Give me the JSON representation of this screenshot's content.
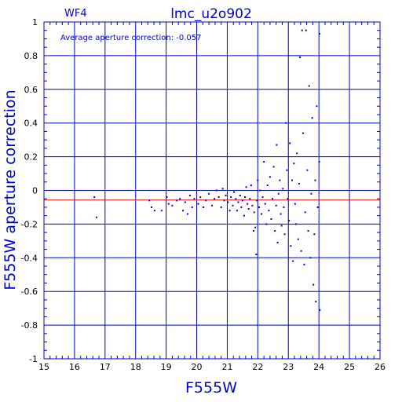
{
  "chart_data": {
    "type": "scatter",
    "title": "lmc_u2o902",
    "panel_label": "WF4",
    "annotation": "Average aperture correction: -0.057",
    "xlabel": "F555W",
    "ylabel": "F555W aperture correction",
    "xlim": [
      15,
      26
    ],
    "ylim": [
      -1,
      1
    ],
    "x_ticks": [
      15,
      16,
      17,
      18,
      19,
      20,
      21,
      22,
      23,
      24,
      25,
      26
    ],
    "y_ticks": [
      -1,
      -0.8,
      -0.6,
      -0.4,
      -0.2,
      0,
      0.2,
      0.4,
      0.6,
      0.8,
      1
    ],
    "y_tick_labels": [
      "-1",
      "-0.8",
      "-0.6",
      "-0.4",
      "-0.2",
      "0",
      "0.2",
      "0.4",
      "0.6",
      "0.8",
      "1"
    ],
    "grid": true,
    "reference_line": {
      "y": -0.057,
      "color": "#ff0000"
    },
    "colors": {
      "axes": "#0000cc",
      "points": "#0000cc",
      "reference": "#ff0000",
      "text": "#0000cc"
    },
    "series": [
      {
        "points": [
          [
            16.65,
            -0.04
          ],
          [
            16.72,
            -0.16
          ],
          [
            18.45,
            -0.06
          ],
          [
            18.52,
            -0.1
          ],
          [
            18.62,
            -0.12
          ],
          [
            18.85,
            -0.12
          ],
          [
            19.02,
            -0.04
          ],
          [
            19.08,
            -0.08
          ],
          [
            19.2,
            -0.09
          ],
          [
            19.35,
            -0.06
          ],
          [
            19.45,
            -0.05
          ],
          [
            19.55,
            -0.12
          ],
          [
            19.62,
            -0.07
          ],
          [
            19.7,
            -0.14
          ],
          [
            19.78,
            -0.03
          ],
          [
            19.85,
            -0.1
          ],
          [
            19.92,
            -0.05
          ],
          [
            20.05,
            -0.08
          ],
          [
            20.12,
            -0.04
          ],
          [
            20.22,
            -0.1
          ],
          [
            20.3,
            -0.06
          ],
          [
            20.4,
            -0.02
          ],
          [
            20.5,
            -0.09
          ],
          [
            20.58,
            -0.05
          ],
          [
            20.65,
            0.0
          ],
          [
            20.72,
            -0.04
          ],
          [
            20.8,
            -0.1
          ],
          [
            20.85,
            0.01
          ],
          [
            20.9,
            -0.06
          ],
          [
            20.95,
            -0.03
          ],
          [
            21.02,
            -0.07
          ],
          [
            21.08,
            -0.12
          ],
          [
            21.12,
            -0.04
          ],
          [
            21.18,
            -0.09
          ],
          [
            21.22,
            -0.01
          ],
          [
            21.28,
            -0.05
          ],
          [
            21.32,
            -0.12
          ],
          [
            21.36,
            -0.07
          ],
          [
            21.42,
            -0.03
          ],
          [
            21.46,
            -0.1
          ],
          [
            21.5,
            -0.06
          ],
          [
            21.55,
            -0.15
          ],
          [
            21.58,
            -0.04
          ],
          [
            21.62,
            0.02
          ],
          [
            21.66,
            -0.08
          ],
          [
            21.7,
            -0.11
          ],
          [
            21.74,
            -0.05
          ],
          [
            21.78,
            0.03
          ],
          [
            21.82,
            -0.09
          ],
          [
            21.86,
            -0.24
          ],
          [
            21.88,
            -0.13
          ],
          [
            21.92,
            -0.22
          ],
          [
            21.95,
            -0.38
          ],
          [
            21.97,
            -0.06
          ],
          [
            22.0,
            0.06
          ],
          [
            22.04,
            -0.1
          ],
          [
            22.08,
            0.0
          ],
          [
            22.12,
            -0.14
          ],
          [
            22.16,
            -0.04
          ],
          [
            22.2,
            0.17
          ],
          [
            22.24,
            -0.08
          ],
          [
            22.28,
            -0.2
          ],
          [
            22.32,
            0.03
          ],
          [
            22.36,
            -0.12
          ],
          [
            22.4,
            0.08
          ],
          [
            22.44,
            -0.17
          ],
          [
            22.48,
            -0.05
          ],
          [
            22.52,
            0.14
          ],
          [
            22.56,
            -0.24
          ],
          [
            22.6,
            -0.09
          ],
          [
            22.62,
            0.27
          ],
          [
            22.65,
            -0.31
          ],
          [
            22.68,
            -0.02
          ],
          [
            22.72,
            0.06
          ],
          [
            22.75,
            -0.14
          ],
          [
            22.78,
            -0.21
          ],
          [
            22.82,
            0.01
          ],
          [
            22.85,
            -0.1
          ],
          [
            22.88,
            -0.26
          ],
          [
            22.92,
            0.4
          ],
          [
            22.95,
            0.12
          ],
          [
            22.98,
            -0.05
          ],
          [
            23.02,
            -0.18
          ],
          [
            23.05,
            0.28
          ],
          [
            23.08,
            -0.33
          ],
          [
            23.12,
            0.06
          ],
          [
            23.15,
            -0.42
          ],
          [
            23.18,
            0.16
          ],
          [
            23.22,
            -0.08
          ],
          [
            23.25,
            -0.2
          ],
          [
            23.28,
            0.22
          ],
          [
            23.32,
            -0.29
          ],
          [
            23.35,
            0.04
          ],
          [
            23.38,
            0.79
          ],
          [
            23.42,
            -0.36
          ],
          [
            23.45,
            0.95
          ],
          [
            23.48,
            0.34
          ],
          [
            23.52,
            -0.44
          ],
          [
            23.55,
            -0.13
          ],
          [
            23.58,
            0.95
          ],
          [
            23.62,
            0.12
          ],
          [
            23.65,
            -0.24
          ],
          [
            23.68,
            0.62
          ],
          [
            23.72,
            -0.4
          ],
          [
            23.75,
            -0.02
          ],
          [
            23.78,
            0.43
          ],
          [
            23.82,
            -0.56
          ],
          [
            23.85,
            -0.26
          ],
          [
            23.88,
            0.06
          ],
          [
            23.9,
            -0.66
          ],
          [
            23.93,
            0.5
          ],
          [
            23.96,
            -0.1
          ],
          [
            24.02,
            0.93
          ],
          [
            24.03,
            -0.71
          ],
          [
            24.01,
            0.17
          ]
        ]
      }
    ]
  }
}
